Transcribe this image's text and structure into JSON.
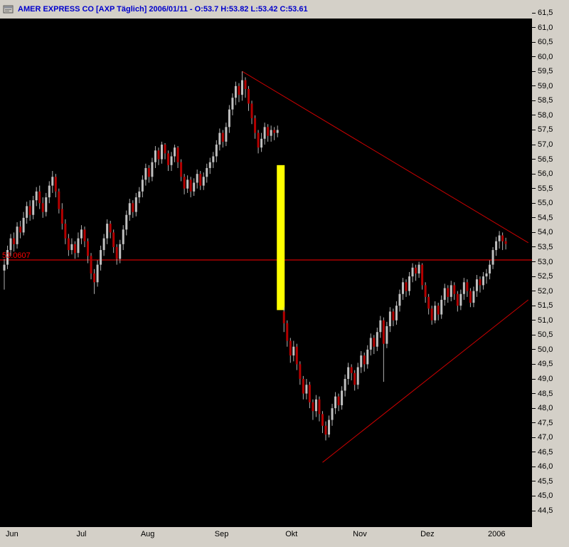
{
  "window": {
    "title": "AMER EXPRESS CO [AXP  Täglich] 2006/01/11 - O:53.7 H:53.82 L:53.42 C:53.61"
  },
  "chart_data": {
    "type": "candlestick",
    "title": "AMER EXPRESS CO [AXP  Täglich] 2006/01/11 - O:53.7 H:53.82 L:53.42 C:53.61",
    "instrument": "AMER EXPRESS CO",
    "symbol": "AXP",
    "timeframe": "Täglich",
    "session_date": "2006/01/11",
    "session_ohlc": {
      "open": 53.7,
      "high": 53.82,
      "low": 53.42,
      "close": 53.61
    },
    "y_axis": {
      "min": 44.5,
      "max": 61.5,
      "step": 0.5,
      "tick_labels": [
        "61,5",
        "61,0",
        "60,5",
        "60,0",
        "59,5",
        "59,0",
        "58,5",
        "58,0",
        "57,5",
        "57,0",
        "56,5",
        "56,0",
        "55,5",
        "55,0",
        "54,5",
        "54,0",
        "53,5",
        "53,0",
        "52,5",
        "52,0",
        "51,5",
        "51,0",
        "50,5",
        "50,0",
        "49,5",
        "49,0",
        "48,5",
        "48,0",
        "47,5",
        "47,0",
        "46,5",
        "46,0",
        "45,5",
        "45,0",
        "44,5"
      ]
    },
    "x_axis": {
      "tick_labels": [
        {
          "label": "Jun",
          "index": 0
        },
        {
          "label": "Jul",
          "index": 22
        },
        {
          "label": "Aug",
          "index": 42
        },
        {
          "label": "Sep",
          "index": 65
        },
        {
          "label": "Okt",
          "index": 87
        },
        {
          "label": "Nov",
          "index": 108
        },
        {
          "label": "Dez",
          "index": 129
        },
        {
          "label": "2006",
          "index": 150
        }
      ]
    },
    "annotations": {
      "horizontal_line": {
        "value": 53.0607,
        "label": "53.0607",
        "color": "#ff0000"
      },
      "trendlines": [
        {
          "name": "descending-resistance",
          "from_index": 74,
          "from_value": 59.5,
          "to_index": 163,
          "to_value": 53.65,
          "color": "#cc0000"
        },
        {
          "name": "ascending-support",
          "from_index": 99,
          "from_value": 46.15,
          "to_index": 163,
          "to_value": 51.7,
          "color": "#cc0000"
        }
      ],
      "highlight_box": {
        "index": 86,
        "top_value": 56.3,
        "bottom_value": 51.35,
        "color": "#ffff00"
      }
    },
    "colors": {
      "background": "#000000",
      "up_candle": "#c0c0c0",
      "down_candle": "#b40000",
      "wick": "#b0b0b0"
    },
    "ohlc": [
      [
        52.7,
        53.1,
        52.05,
        52.9
      ],
      [
        52.9,
        53.55,
        52.75,
        53.4
      ],
      [
        53.4,
        53.95,
        53.2,
        53.8
      ],
      [
        53.8,
        54.0,
        53.35,
        53.6
      ],
      [
        53.6,
        54.35,
        53.45,
        54.2
      ],
      [
        54.2,
        54.4,
        53.8,
        54.0
      ],
      [
        54.0,
        54.7,
        53.9,
        54.5
      ],
      [
        54.5,
        55.05,
        54.3,
        54.9
      ],
      [
        54.9,
        55.1,
        54.4,
        54.6
      ],
      [
        54.6,
        55.25,
        54.45,
        55.1
      ],
      [
        55.1,
        55.55,
        54.9,
        55.4
      ],
      [
        55.4,
        55.6,
        54.8,
        55.0
      ],
      [
        55.0,
        55.2,
        54.5,
        54.7
      ],
      [
        54.7,
        55.35,
        54.55,
        55.2
      ],
      [
        55.2,
        55.75,
        55.0,
        55.6
      ],
      [
        55.6,
        56.1,
        55.35,
        55.9
      ],
      [
        55.9,
        56.0,
        55.2,
        55.4
      ],
      [
        55.4,
        55.5,
        54.65,
        54.8
      ],
      [
        54.8,
        55.0,
        54.1,
        54.3
      ],
      [
        54.3,
        54.45,
        53.6,
        53.8
      ],
      [
        53.8,
        53.95,
        53.2,
        53.4
      ],
      [
        53.4,
        53.8,
        53.25,
        53.6
      ],
      [
        53.6,
        53.7,
        53.1,
        53.3
      ],
      [
        53.3,
        54.0,
        53.15,
        53.8
      ],
      [
        53.8,
        54.25,
        53.6,
        54.1
      ],
      [
        54.1,
        54.2,
        53.5,
        53.7
      ],
      [
        53.7,
        53.8,
        52.95,
        53.2
      ],
      [
        53.2,
        53.3,
        52.4,
        52.6
      ],
      [
        52.6,
        52.75,
        51.9,
        52.3
      ],
      [
        52.3,
        53.05,
        52.15,
        52.9
      ],
      [
        52.9,
        53.55,
        52.7,
        53.4
      ],
      [
        53.4,
        53.95,
        53.2,
        53.8
      ],
      [
        53.8,
        54.45,
        53.6,
        54.3
      ],
      [
        54.3,
        54.4,
        53.8,
        54.0
      ],
      [
        54.0,
        54.1,
        53.3,
        53.5
      ],
      [
        53.5,
        53.6,
        52.9,
        53.1
      ],
      [
        53.1,
        53.75,
        52.95,
        53.6
      ],
      [
        53.6,
        54.25,
        53.4,
        54.1
      ],
      [
        54.1,
        54.75,
        53.9,
        54.6
      ],
      [
        54.6,
        55.15,
        54.4,
        55.0
      ],
      [
        55.0,
        55.1,
        54.5,
        54.7
      ],
      [
        54.7,
        55.35,
        54.55,
        55.2
      ],
      [
        55.2,
        55.55,
        55.0,
        55.4
      ],
      [
        55.4,
        55.95,
        55.2,
        55.8
      ],
      [
        55.8,
        56.35,
        55.6,
        56.2
      ],
      [
        56.2,
        56.3,
        55.7,
        55.9
      ],
      [
        55.9,
        56.55,
        55.75,
        56.4
      ],
      [
        56.4,
        56.95,
        56.2,
        56.8
      ],
      [
        56.8,
        56.9,
        56.3,
        56.5
      ],
      [
        56.5,
        57.1,
        56.35,
        57.0
      ],
      [
        57.0,
        57.05,
        56.5,
        56.7
      ],
      [
        56.7,
        56.8,
        56.1,
        56.3
      ],
      [
        56.3,
        56.75,
        56.1,
        56.6
      ],
      [
        56.6,
        57.0,
        56.4,
        56.9
      ],
      [
        56.9,
        56.95,
        56.2,
        56.4
      ],
      [
        56.4,
        56.5,
        55.75,
        55.9
      ],
      [
        55.9,
        56.0,
        55.3,
        55.5
      ],
      [
        55.5,
        55.95,
        55.35,
        55.8
      ],
      [
        55.8,
        55.9,
        55.2,
        55.4
      ],
      [
        55.4,
        55.85,
        55.25,
        55.7
      ],
      [
        55.7,
        56.15,
        55.5,
        56.0
      ],
      [
        56.0,
        56.1,
        55.45,
        55.6
      ],
      [
        55.6,
        56.05,
        55.45,
        55.9
      ],
      [
        55.9,
        56.35,
        55.7,
        56.2
      ],
      [
        56.2,
        56.55,
        56.0,
        56.4
      ],
      [
        56.4,
        56.75,
        56.2,
        56.6
      ],
      [
        56.6,
        57.15,
        56.4,
        57.0
      ],
      [
        57.0,
        57.55,
        56.8,
        57.4
      ],
      [
        57.4,
        57.5,
        56.9,
        57.1
      ],
      [
        57.1,
        57.75,
        56.95,
        57.6
      ],
      [
        57.6,
        58.35,
        57.4,
        58.2
      ],
      [
        58.2,
        58.75,
        58.0,
        58.6
      ],
      [
        58.6,
        59.15,
        58.35,
        59.0
      ],
      [
        59.0,
        59.1,
        58.45,
        58.7
      ],
      [
        58.7,
        59.5,
        58.5,
        59.2
      ],
      [
        59.2,
        59.3,
        58.6,
        58.9
      ],
      [
        58.9,
        59.0,
        58.15,
        58.4
      ],
      [
        58.4,
        58.5,
        57.7,
        57.9
      ],
      [
        57.9,
        58.0,
        57.2,
        57.4
      ],
      [
        57.4,
        57.5,
        56.7,
        56.9
      ],
      [
        56.9,
        57.4,
        56.75,
        57.2
      ],
      [
        57.2,
        57.75,
        57.0,
        57.6
      ],
      [
        57.6,
        57.7,
        57.1,
        57.3
      ],
      [
        57.3,
        57.65,
        57.1,
        57.5
      ],
      [
        57.5,
        57.6,
        57.15,
        57.4
      ],
      [
        57.4,
        57.65,
        57.25,
        57.5
      ],
      null,
      [
        51.3,
        51.45,
        50.6,
        50.9
      ],
      [
        50.9,
        51.0,
        50.1,
        50.3
      ],
      [
        50.3,
        50.4,
        49.55,
        49.8
      ],
      [
        49.8,
        50.3,
        49.6,
        50.1
      ],
      [
        50.1,
        50.2,
        49.3,
        49.5
      ],
      [
        49.5,
        49.6,
        48.8,
        49.0
      ],
      [
        49.0,
        49.1,
        48.3,
        48.5
      ],
      [
        48.5,
        49.0,
        48.3,
        48.8
      ],
      [
        48.8,
        48.9,
        48.0,
        48.2
      ],
      [
        48.2,
        48.3,
        47.6,
        47.9
      ],
      [
        47.9,
        48.45,
        47.7,
        48.3
      ],
      [
        48.3,
        48.4,
        47.55,
        47.8
      ],
      [
        47.8,
        47.9,
        47.15,
        47.4
      ],
      [
        47.4,
        47.55,
        46.9,
        47.1
      ],
      [
        47.1,
        47.75,
        47.0,
        47.6
      ],
      [
        47.6,
        48.15,
        47.4,
        48.0
      ],
      [
        48.0,
        48.55,
        47.8,
        48.4
      ],
      [
        48.4,
        48.5,
        47.9,
        48.1
      ],
      [
        48.1,
        48.75,
        47.95,
        48.6
      ],
      [
        48.6,
        49.15,
        48.4,
        49.0
      ],
      [
        49.0,
        49.55,
        48.8,
        49.4
      ],
      [
        49.4,
        49.5,
        48.95,
        49.2
      ],
      [
        49.2,
        49.3,
        48.6,
        48.8
      ],
      [
        48.8,
        49.55,
        48.65,
        49.4
      ],
      [
        49.4,
        49.95,
        49.2,
        49.8
      ],
      [
        49.8,
        49.9,
        49.25,
        49.5
      ],
      [
        49.5,
        50.15,
        49.35,
        50.0
      ],
      [
        50.0,
        50.55,
        49.8,
        50.4
      ],
      [
        50.4,
        50.5,
        49.85,
        50.1
      ],
      [
        50.1,
        50.75,
        49.95,
        50.6
      ],
      [
        50.6,
        51.15,
        50.4,
        51.0
      ],
      [
        51.0,
        51.1,
        48.9,
        50.2
      ],
      [
        50.2,
        50.95,
        50.05,
        50.8
      ],
      [
        50.8,
        51.45,
        50.6,
        51.3
      ],
      [
        51.3,
        51.4,
        50.8,
        51.0
      ],
      [
        51.0,
        51.65,
        50.85,
        51.5
      ],
      [
        51.5,
        52.05,
        51.3,
        51.9
      ],
      [
        51.9,
        52.45,
        51.7,
        52.3
      ],
      [
        52.3,
        52.4,
        51.8,
        52.0
      ],
      [
        52.0,
        52.65,
        51.85,
        52.5
      ],
      [
        52.5,
        52.95,
        52.3,
        52.8
      ],
      [
        52.8,
        52.9,
        52.35,
        52.6
      ],
      [
        52.6,
        53.0,
        52.45,
        52.9
      ],
      [
        52.9,
        52.95,
        52.05,
        52.2
      ],
      [
        52.2,
        52.3,
        51.6,
        51.8
      ],
      [
        51.8,
        51.9,
        51.2,
        51.4
      ],
      [
        51.4,
        51.5,
        50.85,
        51.0
      ],
      [
        51.0,
        51.65,
        50.9,
        51.5
      ],
      [
        51.5,
        51.6,
        51.0,
        51.2
      ],
      [
        51.2,
        51.85,
        51.05,
        51.7
      ],
      [
        51.7,
        52.25,
        51.5,
        52.1
      ],
      [
        52.1,
        52.2,
        51.6,
        51.8
      ],
      [
        51.8,
        52.35,
        51.65,
        52.2
      ],
      [
        52.2,
        52.3,
        51.7,
        51.9
      ],
      [
        51.9,
        52.0,
        51.3,
        51.5
      ],
      [
        51.5,
        52.05,
        51.35,
        51.9
      ],
      [
        51.9,
        52.45,
        51.7,
        52.3
      ],
      [
        52.3,
        52.4,
        51.8,
        52.0
      ],
      [
        52.0,
        52.1,
        51.45,
        51.6
      ],
      [
        51.6,
        52.15,
        51.45,
        52.0
      ],
      [
        52.0,
        52.55,
        51.8,
        52.4
      ],
      [
        52.4,
        52.5,
        51.95,
        52.2
      ],
      [
        52.2,
        52.65,
        52.05,
        52.5
      ],
      [
        52.5,
        52.75,
        52.25,
        52.6
      ],
      [
        52.6,
        53.05,
        52.4,
        52.9
      ],
      [
        52.9,
        53.5,
        52.75,
        53.4
      ],
      [
        53.4,
        53.85,
        53.2,
        53.7
      ],
      [
        53.7,
        54.05,
        53.45,
        53.9
      ],
      [
        53.9,
        54.0,
        53.4,
        53.7
      ],
      [
        53.7,
        53.82,
        53.42,
        53.61
      ]
    ]
  }
}
